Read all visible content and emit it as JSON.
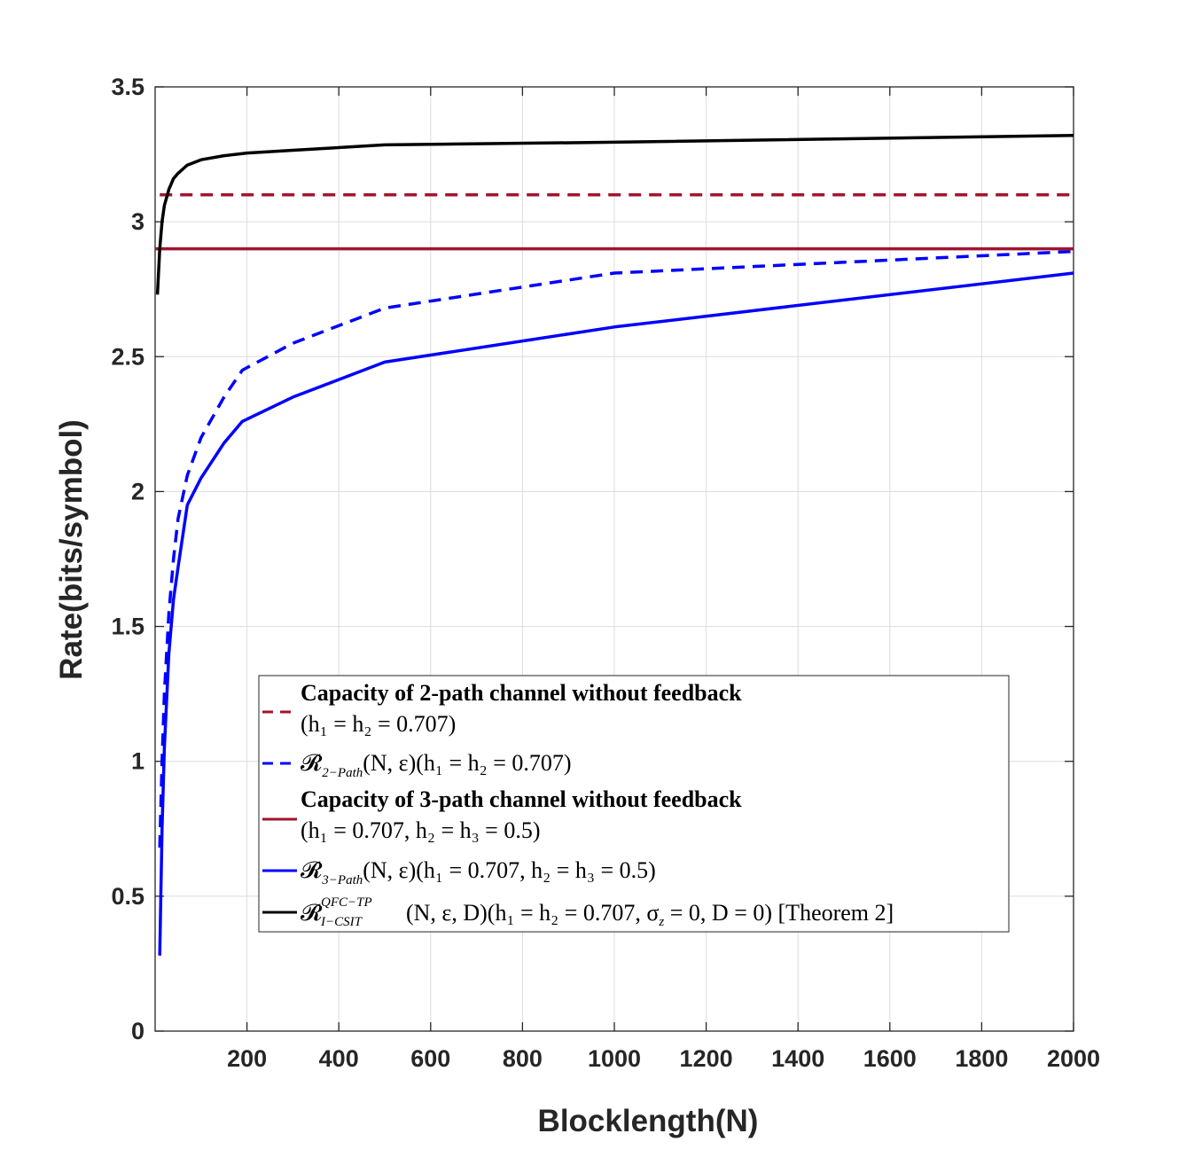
{
  "chart_data": {
    "type": "line",
    "title": "",
    "xlabel": "Blocklength(N)",
    "ylabel": "Rate(bits/symbol)",
    "xlim": [
      0,
      2000
    ],
    "ylim": [
      0,
      3.5
    ],
    "xticks": [
      200,
      400,
      600,
      800,
      1000,
      1200,
      1400,
      1600,
      1800,
      2000
    ],
    "yticks": [
      0,
      0.5,
      1,
      1.5,
      2,
      2.5,
      3,
      3.5
    ],
    "xtick_labels": [
      "200",
      "400",
      "600",
      "800",
      "1000",
      "1200",
      "1400",
      "1600",
      "1800",
      "2000"
    ],
    "ytick_labels": [
      "0",
      "0.5",
      "1",
      "1.5",
      "2",
      "2.5",
      "3",
      "3.5"
    ],
    "grid": true,
    "legend_position": "lower-center",
    "series": [
      {
        "id": "cap2",
        "name": "Capacity of 2-path channel without feedback (h1 = h2 = 0.707)",
        "color": "#a2142f",
        "dash": "dashed",
        "x": [
          10,
          2000
        ],
        "y": [
          3.1,
          3.1
        ]
      },
      {
        "id": "r2",
        "name": "R2-Path(N, ε)(h1 = h2 = 0.707)",
        "color": "#0000ff",
        "dash": "dashed",
        "x": [
          10,
          15,
          20,
          30,
          40,
          50,
          70,
          100,
          150,
          190,
          300,
          500,
          1000,
          2000
        ],
        "y": [
          0.68,
          1.0,
          1.25,
          1.55,
          1.75,
          1.9,
          2.06,
          2.2,
          2.35,
          2.45,
          2.55,
          2.68,
          2.81,
          2.89
        ]
      },
      {
        "id": "cap3",
        "name": "Capacity of 3-path channel without feedback (h1 = 0.707, h2 = h3 = 0.5)",
        "color": "#a2142f",
        "dash": "solid",
        "x": [
          0,
          2000
        ],
        "y": [
          2.9,
          2.9
        ]
      },
      {
        "id": "r3",
        "name": "R3-Path(N, ε)(h1 = 0.707, h2 = h3 = 0.5)",
        "color": "#0000ff",
        "dash": "solid",
        "x": [
          10,
          15,
          20,
          30,
          40,
          50,
          70,
          100,
          150,
          190,
          300,
          500,
          1000,
          2000
        ],
        "y": [
          0.28,
          0.75,
          1.05,
          1.4,
          1.6,
          1.72,
          1.95,
          2.05,
          2.18,
          2.26,
          2.35,
          2.48,
          2.61,
          2.81
        ]
      },
      {
        "id": "qfc",
        "name": "R QFC-TP I-CSIT(N, ε, D)(h1 = h2 = 0.707, σz = 0, D = 0) [Theorem 2]",
        "color": "#000000",
        "dash": "solid",
        "x": [
          5,
          10,
          15,
          20,
          30,
          40,
          50,
          70,
          100,
          150,
          200,
          300,
          500,
          1000,
          2000
        ],
        "y": [
          2.73,
          2.9,
          3.0,
          3.06,
          3.12,
          3.16,
          3.18,
          3.21,
          3.23,
          3.245,
          3.255,
          3.265,
          3.285,
          3.295,
          3.32
        ]
      }
    ]
  },
  "legend": {
    "entries": [
      {
        "series": "cap2",
        "line1": "Capacity of 2-path channel without feedback",
        "line2": "(h₁ = h₂ = 0.707)"
      },
      {
        "series": "r2",
        "script": "𝓡",
        "sub": "2−Path",
        "rest": "(N, ε)(h₁ = h₂ = 0.707)"
      },
      {
        "series": "cap3",
        "line1": "Capacity of 3-path channel without feedback",
        "line2": "(h₁ = 0.707, h₂ = h₃ = 0.5)"
      },
      {
        "series": "r3",
        "script": "𝓡",
        "sub": "3−Path",
        "rest": "(N, ε)(h₁ = 0.707, h₂ = h₃ = 0.5)"
      },
      {
        "series": "qfc",
        "script": "𝓡",
        "sup": "QFC−TP",
        "sub": "I−CSIT",
        "rest": "(N, ε, D)(h₁ = h₂ = 0.707, σ",
        "rest_sub": "z",
        "rest_tail": " = 0, D = 0) [Theorem 2]"
      }
    ]
  }
}
